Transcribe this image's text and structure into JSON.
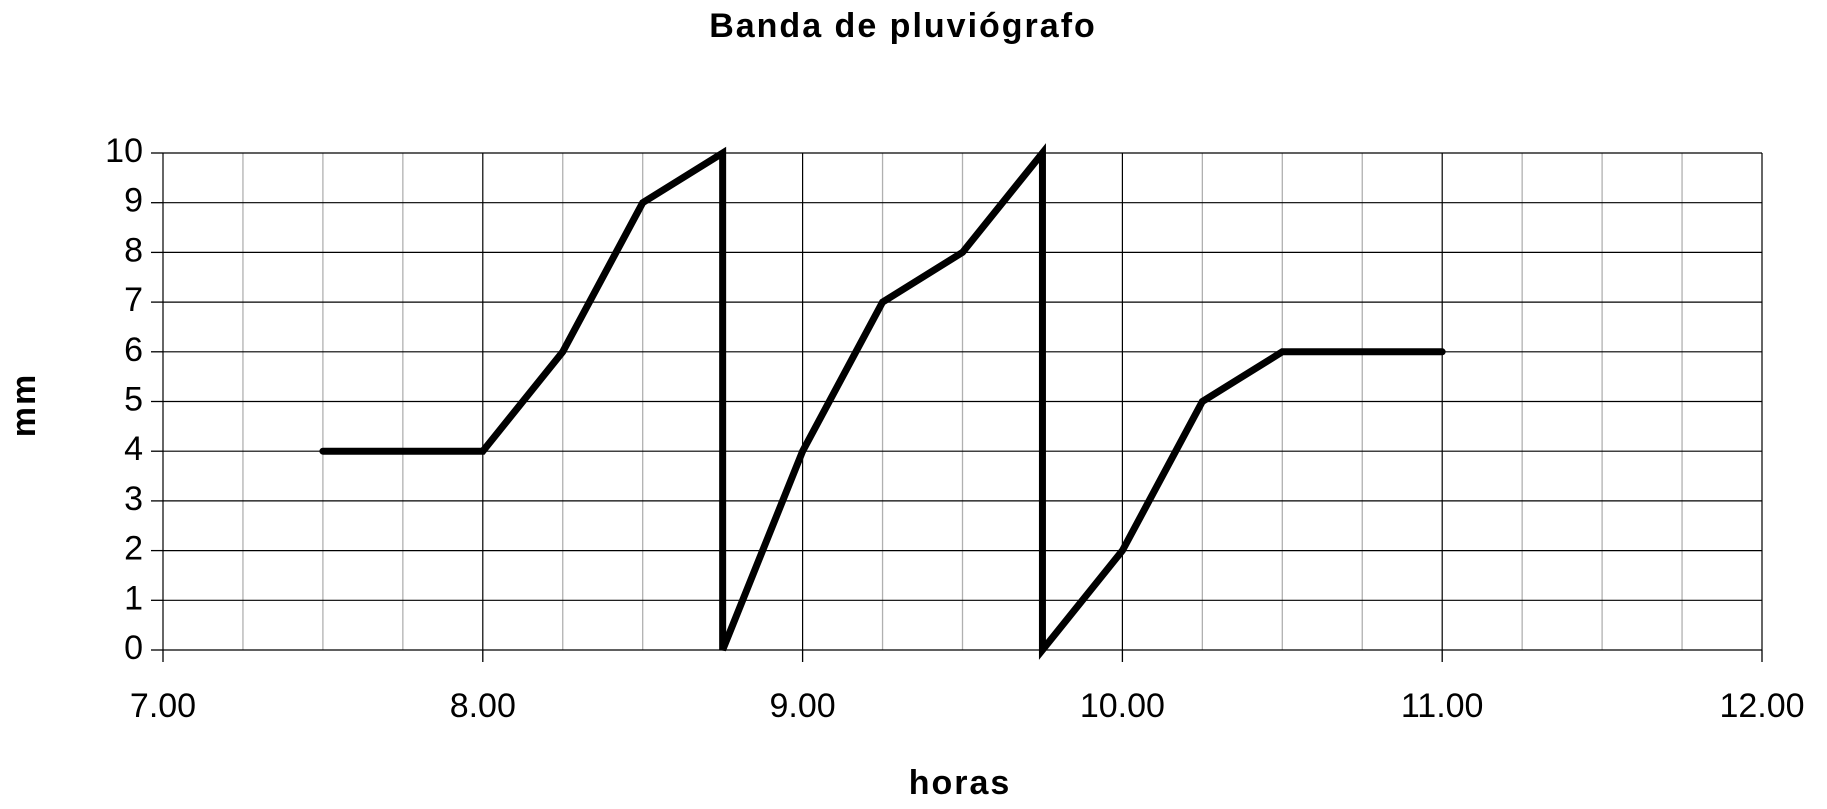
{
  "chart_data": {
    "type": "line",
    "title": "Banda de pluviógrafo",
    "xlabel": "horas",
    "ylabel": "mm",
    "x": [
      7.5,
      8.0,
      8.25,
      8.5,
      8.75,
      8.75,
      9.0,
      9.25,
      9.5,
      9.75,
      9.75,
      10.0,
      10.25,
      10.5,
      11.0
    ],
    "series": [
      {
        "name": "mm",
        "color": "#000000",
        "values": [
          4,
          4,
          6,
          9,
          10,
          0,
          4,
          7,
          8,
          10,
          0,
          2,
          5,
          6,
          6
        ]
      }
    ],
    "xlim": [
      7,
      12
    ],
    "xticks": [
      {
        "value": 7,
        "label": "7.00"
      },
      {
        "value": 8,
        "label": "8.00"
      },
      {
        "value": 9,
        "label": "9.00"
      },
      {
        "value": 10,
        "label": "10.00"
      },
      {
        "value": 11,
        "label": "11.00"
      },
      {
        "value": 12,
        "label": "12.00"
      }
    ],
    "xminorticks": [
      7.25,
      7.5,
      7.75,
      8.25,
      8.5,
      8.75,
      9.25,
      9.5,
      9.75,
      10.25,
      10.5,
      10.75,
      11.25,
      11.5,
      11.75
    ],
    "ylim": [
      0,
      10
    ],
    "yticks": [
      0,
      1,
      2,
      3,
      4,
      5,
      6,
      7,
      8,
      9,
      10
    ],
    "grid": true
  }
}
